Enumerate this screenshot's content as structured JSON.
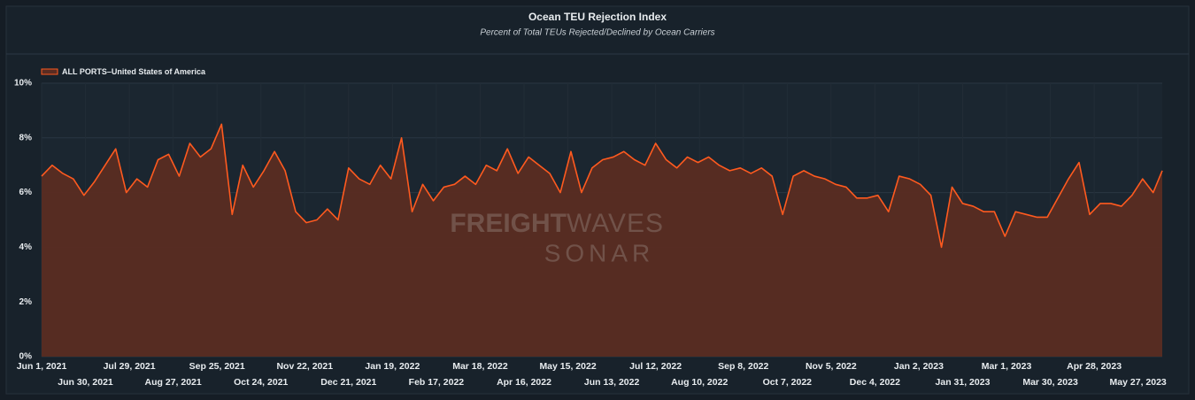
{
  "chart_data": {
    "type": "area",
    "title": "Ocean TEU Rejection Index",
    "subtitle": "Percent of Total TEUs Rejected/Declined by Ocean Carriers",
    "watermark": {
      "brand_bold": "FREIGHT",
      "brand_light": "WAVES",
      "product": "SONAR"
    },
    "x": [
      "2021-06-01",
      "2021-06-08",
      "2021-06-15",
      "2021-06-22",
      "2021-06-29",
      "2021-07-06",
      "2021-07-13",
      "2021-07-20",
      "2021-07-27",
      "2021-08-03",
      "2021-08-10",
      "2021-08-17",
      "2021-08-24",
      "2021-08-31",
      "2021-09-07",
      "2021-09-14",
      "2021-09-21",
      "2021-09-28",
      "2021-10-05",
      "2021-10-12",
      "2021-10-19",
      "2021-10-26",
      "2021-11-02",
      "2021-11-09",
      "2021-11-16",
      "2021-11-23",
      "2021-11-30",
      "2021-12-07",
      "2021-12-14",
      "2021-12-21",
      "2021-12-28",
      "2022-01-04",
      "2022-01-11",
      "2022-01-18",
      "2022-01-25",
      "2022-02-01",
      "2022-02-08",
      "2022-02-15",
      "2022-02-22",
      "2022-03-01",
      "2022-03-08",
      "2022-03-15",
      "2022-03-22",
      "2022-03-29",
      "2022-04-05",
      "2022-04-12",
      "2022-04-19",
      "2022-04-26",
      "2022-05-03",
      "2022-05-10",
      "2022-05-17",
      "2022-05-24",
      "2022-05-31",
      "2022-06-07",
      "2022-06-14",
      "2022-06-21",
      "2022-06-28",
      "2022-07-05",
      "2022-07-12",
      "2022-07-19",
      "2022-07-26",
      "2022-08-02",
      "2022-08-09",
      "2022-08-16",
      "2022-08-23",
      "2022-08-30",
      "2022-09-06",
      "2022-09-13",
      "2022-09-20",
      "2022-09-27",
      "2022-10-04",
      "2022-10-11",
      "2022-10-18",
      "2022-10-25",
      "2022-11-01",
      "2022-11-08",
      "2022-11-15",
      "2022-11-22",
      "2022-11-29",
      "2022-12-06",
      "2022-12-13",
      "2022-12-20",
      "2022-12-27",
      "2023-01-03",
      "2023-01-10",
      "2023-01-17",
      "2023-01-24",
      "2023-01-31",
      "2023-02-07",
      "2023-02-14",
      "2023-02-21",
      "2023-02-28",
      "2023-03-07",
      "2023-03-14",
      "2023-03-21",
      "2023-03-28",
      "2023-04-04",
      "2023-04-11",
      "2023-04-18",
      "2023-04-25",
      "2023-05-02",
      "2023-05-09",
      "2023-05-16",
      "2023-05-23",
      "2023-05-30",
      "2023-06-06",
      "2023-06-12"
    ],
    "series": [
      {
        "name": "ALL PORTS–United States of America",
        "color": "#ff5a1f",
        "fill": "#5a2c22",
        "values": [
          6.6,
          7.0,
          6.7,
          6.5,
          5.9,
          6.4,
          7.0,
          7.6,
          6.0,
          6.5,
          6.2,
          7.2,
          7.4,
          6.6,
          7.8,
          7.3,
          7.6,
          8.5,
          5.2,
          7.0,
          6.2,
          6.8,
          7.5,
          6.8,
          5.3,
          4.9,
          5.0,
          5.4,
          5.0,
          6.9,
          6.5,
          6.3,
          7.0,
          6.5,
          8.0,
          5.3,
          6.3,
          5.7,
          6.2,
          6.3,
          6.6,
          6.3,
          7.0,
          6.8,
          7.6,
          6.7,
          7.3,
          7.0,
          6.7,
          6.0,
          7.5,
          6.0,
          6.9,
          7.2,
          7.3,
          7.5,
          7.2,
          7.0,
          7.8,
          7.2,
          6.9,
          7.3,
          7.1,
          7.3,
          7.0,
          6.8,
          6.9,
          6.7,
          6.9,
          6.6,
          5.2,
          6.6,
          6.8,
          6.6,
          6.5,
          6.3,
          6.2,
          5.8,
          5.8,
          5.9,
          5.3,
          6.6,
          6.5,
          6.3,
          5.9,
          4.0,
          6.2,
          5.6,
          5.5,
          5.3,
          5.3,
          4.4,
          5.3,
          5.2,
          5.1,
          5.1,
          5.8,
          6.5,
          7.1,
          5.2,
          5.6,
          5.6,
          5.5,
          5.9,
          6.5,
          6.0,
          6.8
        ]
      }
    ],
    "xlim": [
      "2021-06-01",
      "2023-06-12"
    ],
    "xticks": [
      {
        "value": "2021-06-01",
        "label": "Jun 1, 2021"
      },
      {
        "value": "2021-06-30",
        "label": "Jun 30, 2021"
      },
      {
        "value": "2021-07-29",
        "label": "Jul 29, 2021"
      },
      {
        "value": "2021-08-27",
        "label": "Aug 27, 2021"
      },
      {
        "value": "2021-09-25",
        "label": "Sep 25, 2021"
      },
      {
        "value": "2021-10-24",
        "label": "Oct 24, 2021"
      },
      {
        "value": "2021-11-22",
        "label": "Nov 22, 2021"
      },
      {
        "value": "2021-12-21",
        "label": "Dec 21, 2021"
      },
      {
        "value": "2022-01-19",
        "label": "Jan 19, 2022"
      },
      {
        "value": "2022-02-17",
        "label": "Feb 17, 2022"
      },
      {
        "value": "2022-03-18",
        "label": "Mar 18, 2022"
      },
      {
        "value": "2022-04-16",
        "label": "Apr 16, 2022"
      },
      {
        "value": "2022-05-15",
        "label": "May 15, 2022"
      },
      {
        "value": "2022-06-13",
        "label": "Jun 13, 2022"
      },
      {
        "value": "2022-07-12",
        "label": "Jul 12, 2022"
      },
      {
        "value": "2022-08-10",
        "label": "Aug 10, 2022"
      },
      {
        "value": "2022-09-08",
        "label": "Sep 8, 2022"
      },
      {
        "value": "2022-10-07",
        "label": "Oct 7, 2022"
      },
      {
        "value": "2022-11-05",
        "label": "Nov 5, 2022"
      },
      {
        "value": "2022-12-04",
        "label": "Dec 4, 2022"
      },
      {
        "value": "2023-01-02",
        "label": "Jan 2, 2023"
      },
      {
        "value": "2023-01-31",
        "label": "Jan 31, 2023"
      },
      {
        "value": "2023-03-01",
        "label": "Mar 1, 2023"
      },
      {
        "value": "2023-03-30",
        "label": "Mar 30, 2023"
      },
      {
        "value": "2023-04-28",
        "label": "Apr 28, 2023"
      },
      {
        "value": "2023-05-27",
        "label": "May 27, 2023"
      }
    ],
    "ylim": [
      0,
      10
    ],
    "yticks": [
      {
        "value": 0,
        "label": "0%"
      },
      {
        "value": 2,
        "label": "2%"
      },
      {
        "value": 4,
        "label": "4%"
      },
      {
        "value": 6,
        "label": "6%"
      },
      {
        "value": 8,
        "label": "8%"
      },
      {
        "value": 10,
        "label": "10%"
      }
    ],
    "grid": true
  }
}
